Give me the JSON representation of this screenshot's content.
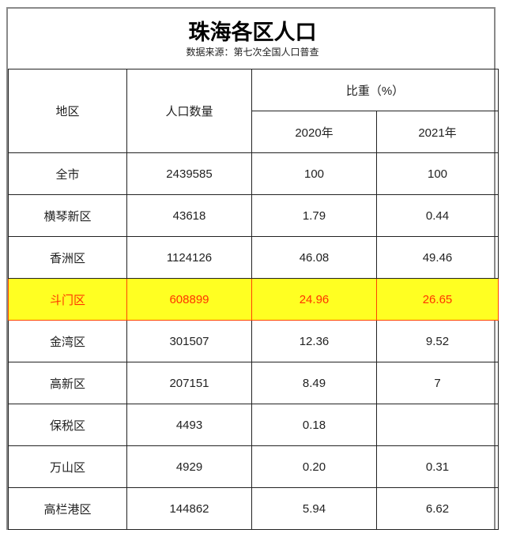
{
  "title": "珠海各区人口",
  "subtitle": "数据来源：第七次全国人口普查",
  "headers": {
    "region": "地区",
    "population": "人口数量",
    "share": "比重（%）",
    "y2020": "2020年",
    "y2021": "2021年"
  },
  "highlight_color": "#ffff22",
  "highlight_text_color": "#ff3300",
  "rows": [
    {
      "region": "全市",
      "population": "2439585",
      "y2020": "100",
      "y2021": "100"
    },
    {
      "region": "横琴新区",
      "population": "43618",
      "y2020": "1.79",
      "y2021": "0.44"
    },
    {
      "region": "香洲区",
      "population": "1124126",
      "y2020": "46.08",
      "y2021": "49.46"
    },
    {
      "region": "斗门区",
      "population": "608899",
      "y2020": "24.96",
      "y2021": "26.65",
      "highlighted": true
    },
    {
      "region": "金湾区",
      "population": "301507",
      "y2020": "12.36",
      "y2021": "9.52"
    },
    {
      "region": "高新区",
      "population": "207151",
      "y2020": "8.49",
      "y2021": "7"
    },
    {
      "region": "保税区",
      "population": "4493",
      "y2020": "0.18",
      "y2021": ""
    },
    {
      "region": "万山区",
      "population": "4929",
      "y2020": "0.20",
      "y2021": "0.31"
    },
    {
      "region": "高栏港区",
      "population": "144862",
      "y2020": "5.94",
      "y2021": "6.62"
    }
  ]
}
